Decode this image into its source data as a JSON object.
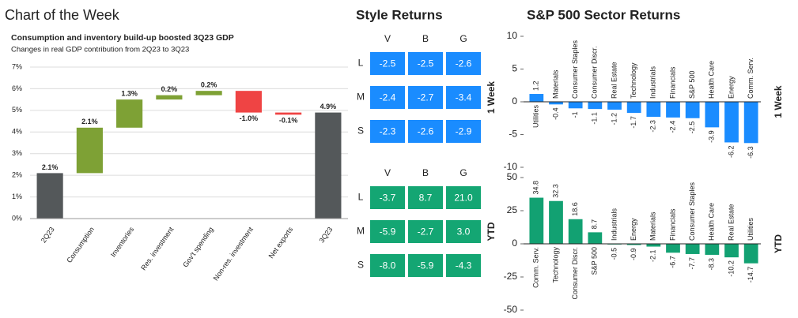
{
  "header": "Chart of the Week",
  "chart_data": [
    {
      "type": "waterfall",
      "title": "Consumption and inventory build-up boosted 3Q23 GDP",
      "subtitle": "Changes in real GDP contribution from 2Q23 to 3Q23",
      "categories": [
        "2Q23",
        "Consumption",
        "Inventories",
        "Res. investment",
        "Gov't spending",
        "Non-res. investment",
        "Net exports",
        "3Q23"
      ],
      "values": [
        2.1,
        2.1,
        1.3,
        0.2,
        0.2,
        -1.0,
        -0.1,
        4.9
      ],
      "value_labels": [
        "2.1%",
        "2.1%",
        "1.3%",
        "0.2%",
        "0.2%",
        "-1.0%",
        "-0.1%",
        "4.9%"
      ],
      "is_total": [
        true,
        false,
        false,
        false,
        false,
        false,
        false,
        true
      ],
      "colors": {
        "total": "#54585a",
        "increase": "#7ea135",
        "decrease": "#ef4444"
      },
      "ylim": [
        0,
        7
      ],
      "yticks": [
        {
          "value": 0,
          "label": "0%"
        },
        {
          "value": 1,
          "label": "1%"
        },
        {
          "value": 2,
          "label": "2%"
        },
        {
          "value": 3,
          "label": "3%"
        },
        {
          "value": 4,
          "label": "4%"
        },
        {
          "value": 5,
          "label": "5%"
        },
        {
          "value": 6,
          "label": "6%"
        },
        {
          "value": 7,
          "label": "7%"
        }
      ],
      "grid": true
    },
    {
      "type": "heatmap",
      "title": "Style Returns",
      "columns": [
        "V",
        "B",
        "G"
      ],
      "rows": [
        "L",
        "M",
        "S"
      ],
      "panels": [
        {
          "name": "1 Week",
          "color": "#1a8cff",
          "values": [
            [
              -2.5,
              -2.5,
              -2.6
            ],
            [
              -2.4,
              -2.7,
              -3.4
            ],
            [
              -2.3,
              -2.6,
              -2.9
            ]
          ]
        },
        {
          "name": "YTD",
          "color": "#14a673",
          "values": [
            [
              -3.7,
              8.7,
              21.0
            ],
            [
              -5.9,
              -2.7,
              3.0
            ],
            [
              -8.0,
              -5.9,
              -4.3
            ]
          ],
          "value_labels": [
            [
              "-3.7",
              "8.7",
              "21.0"
            ],
            [
              "-5.9",
              "-2.7",
              "3.0"
            ],
            [
              "-8.0",
              "-5.9",
              "-4.3"
            ]
          ]
        }
      ]
    },
    {
      "type": "bar",
      "title": "S&P 500 Sector Returns",
      "y_label": "1 Week",
      "categories": [
        "Utilities",
        "Materials",
        "Consumer Staples",
        "Consumer Discr.",
        "Real Estate",
        "Technology",
        "Industrials",
        "Financials",
        "S&P 500",
        "Health Care",
        "Energy",
        "Comm. Serv."
      ],
      "values": [
        1.2,
        -0.4,
        -1.0,
        -1.1,
        -1.2,
        -1.7,
        -2.3,
        -2.4,
        -2.5,
        -3.9,
        -6.2,
        -6.3
      ],
      "color": "#1a8cff",
      "ylim": [
        -10,
        10
      ],
      "yticks": [
        -10,
        -5,
        0,
        5,
        10
      ]
    },
    {
      "type": "bar",
      "y_label": "YTD",
      "categories": [
        "Comm. Serv.",
        "Technology",
        "Consumer Discr.",
        "S&P 500",
        "Industrials",
        "Energy",
        "Materials",
        "Financials",
        "Consumer Staples",
        "Health Care",
        "Real Estate",
        "Utilities"
      ],
      "values": [
        34.8,
        32.3,
        18.6,
        8.7,
        -0.5,
        -0.9,
        -2.1,
        -6.7,
        -7.7,
        -8.3,
        -10.2,
        -14.7
      ],
      "color": "#12a172",
      "ylim": [
        -50,
        50
      ],
      "yticks": [
        -50,
        -25,
        0,
        25,
        50
      ]
    }
  ]
}
